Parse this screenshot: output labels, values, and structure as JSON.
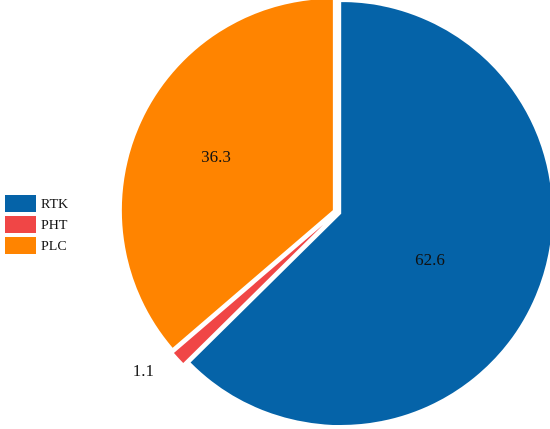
{
  "chart_data": {
    "type": "pie",
    "series": [
      {
        "name": "RTK",
        "value": 62.6,
        "label": "62.6",
        "color": "#0563a8"
      },
      {
        "name": "PHT",
        "value": 1.1,
        "label": "1.1",
        "color": "#f04646"
      },
      {
        "name": "PLC",
        "value": 36.3,
        "label": "36.3",
        "color": "#ff8400"
      }
    ],
    "start": "12 o'clock",
    "direction": "clockwise",
    "exploded": true,
    "legend": "left"
  }
}
